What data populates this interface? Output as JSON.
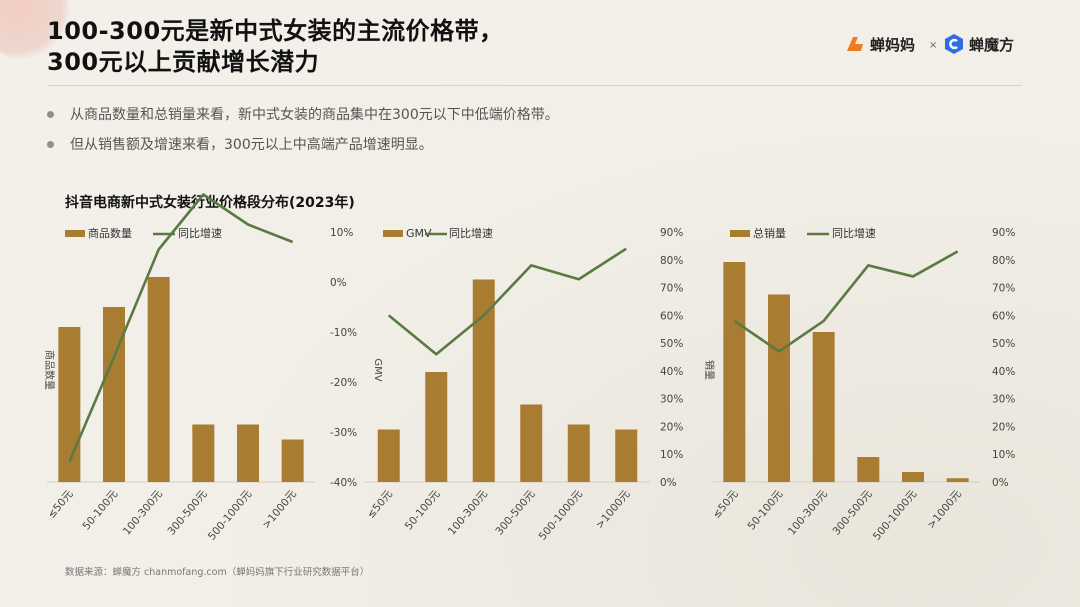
{
  "title": {
    "line1": "100-300元是新中式女装的主流价格带，",
    "line2": "300元以上贡献增长潜力"
  },
  "logos": {
    "left": "蝉妈妈",
    "separator": "×",
    "right": "蝉魔方"
  },
  "bullets": [
    "从商品数量和总销量来看，新中式女装的商品集中在300元以下中低端价格带。",
    "但从销售额及增速来看，300元以上中高端产品增速明显。"
  ],
  "chart_title": "抖音电商新中式女装行业价格段分布(2023年)",
  "source": "数据来源：蝉魔方 chanmofang.com（蝉妈妈旗下行业研究数据平台）",
  "colors": {
    "bar": "#a87d32",
    "line": "#5a7a44",
    "background": "#f1eee6"
  },
  "chart_data": [
    {
      "type": "bar",
      "categories": [
        "≤50元",
        "50-100元",
        "100-300元",
        "300-500元",
        "500-1000元",
        ">1000元"
      ],
      "series": [
        {
          "name": "商品数量",
          "kind": "bar",
          "values": [
            0.62,
            0.7,
            0.82,
            0.23,
            0.23,
            0.17
          ]
        },
        {
          "name": "同比增速",
          "kind": "line",
          "axis": "right",
          "values": [
            -36,
            -15,
            6.5,
            17.5,
            11.5,
            8
          ]
        }
      ],
      "ylabel": "商品数量",
      "y2_ticks": [
        "10%",
        "0%",
        "-10%",
        "-20%",
        "-30%",
        "-40%"
      ],
      "y2lim": [
        -40,
        10
      ],
      "legend": "top-left"
    },
    {
      "type": "bar",
      "categories": [
        "≤50元",
        "50-100元",
        "100-300元",
        "300-500元",
        "500-1000元",
        ">1000元"
      ],
      "series": [
        {
          "name": "GMV",
          "kind": "bar",
          "values": [
            0.21,
            0.44,
            0.81,
            0.31,
            0.23,
            0.21
          ]
        },
        {
          "name": "同比增速",
          "kind": "line",
          "axis": "right",
          "values": [
            60,
            46,
            60,
            78,
            73,
            84
          ]
        }
      ],
      "ylabel": "GMV",
      "y2_ticks": [
        "90%",
        "80%",
        "70%",
        "60%",
        "50%",
        "40%",
        "30%",
        "20%",
        "10%",
        "0%"
      ],
      "y2lim": [
        0,
        90
      ],
      "legend": "top-left"
    },
    {
      "type": "bar",
      "categories": [
        "≤50元",
        "50-100元",
        "100-300元",
        "300-500元",
        "500-1000元",
        ">1000元"
      ],
      "series": [
        {
          "name": "总销量",
          "kind": "bar",
          "values": [
            0.88,
            0.75,
            0.6,
            0.1,
            0.04,
            0.015
          ]
        },
        {
          "name": "同比增速",
          "kind": "line",
          "axis": "right",
          "values": [
            58,
            47,
            58,
            78,
            74,
            83
          ]
        }
      ],
      "ylabel": "销量",
      "y2_ticks": [
        "90%",
        "80%",
        "70%",
        "60%",
        "50%",
        "40%",
        "30%",
        "20%",
        "10%",
        "0%"
      ],
      "y2lim": [
        0,
        90
      ],
      "legend": "top-left"
    }
  ]
}
